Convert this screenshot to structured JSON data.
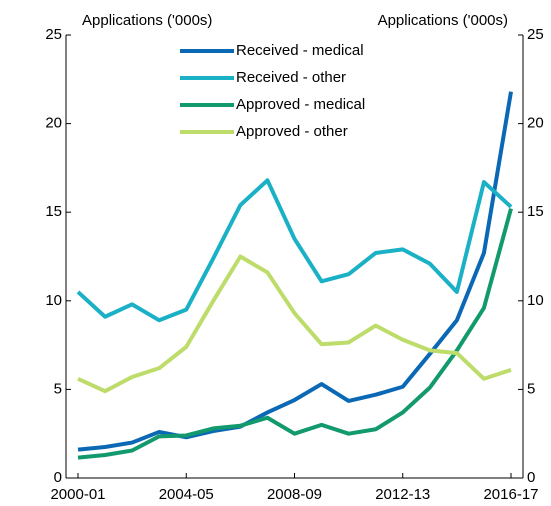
{
  "chart_data": {
    "type": "line",
    "ylabel": "Applications ('000s)",
    "y2label": "Applications ('000s)",
    "categories": [
      "2000-01",
      null,
      null,
      null,
      "2004-05",
      null,
      null,
      null,
      "2008-09",
      null,
      null,
      null,
      "2012-13",
      null,
      null,
      null,
      "2016-17"
    ],
    "series": [
      {
        "name": "Received - medical",
        "color": "#0a68b4",
        "values": [
          1.6,
          1.75,
          2.0,
          2.6,
          2.3,
          2.65,
          2.9,
          3.7,
          4.4,
          5.3,
          4.35,
          4.7,
          5.15,
          7.0,
          8.9,
          12.7,
          21.8
        ]
      },
      {
        "name": "Received - other",
        "color": "#1ab0c6",
        "values": [
          10.5,
          9.1,
          9.8,
          8.9,
          9.5,
          12.4,
          15.4,
          16.8,
          13.5,
          11.1,
          11.5,
          12.7,
          12.9,
          12.1,
          10.5,
          16.7,
          15.3
        ]
      },
      {
        "name": "Approved - medical",
        "color": "#12996e",
        "values": [
          1.15,
          1.3,
          1.55,
          2.35,
          2.4,
          2.8,
          2.95,
          3.4,
          2.5,
          3.0,
          2.5,
          2.75,
          3.7,
          5.1,
          7.2,
          9.6,
          15.2
        ]
      },
      {
        "name": "Approved - other",
        "color": "#bddc6a",
        "values": [
          5.6,
          4.9,
          5.7,
          6.2,
          7.4,
          10.0,
          12.5,
          11.6,
          9.3,
          7.55,
          7.65,
          8.6,
          7.8,
          7.2,
          7.05,
          5.6,
          6.1
        ]
      }
    ],
    "ylim": [
      0,
      25
    ],
    "yticks": [
      0,
      5,
      10,
      15,
      20,
      25
    ],
    "y2lim": [
      0,
      25
    ],
    "y2ticks": [
      0,
      5,
      10,
      15,
      20,
      25
    ]
  }
}
